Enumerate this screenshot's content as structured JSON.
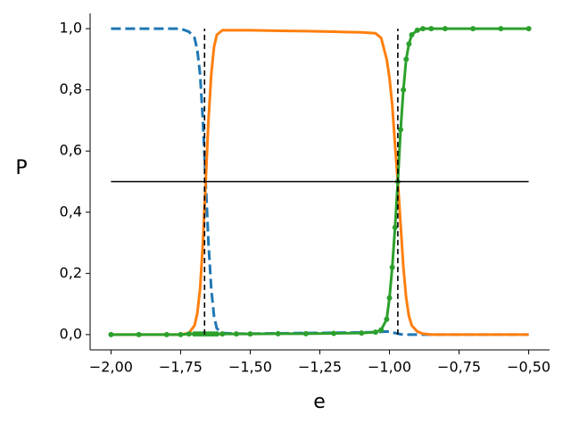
{
  "chart_data": {
    "type": "line",
    "x_label": "e",
    "y_label": "P",
    "xlim": [
      -2.075,
      -0.425
    ],
    "ylim": [
      -0.05,
      1.05
    ],
    "xticks": [
      {
        "value": -2.0,
        "label": "−2,00"
      },
      {
        "value": -1.75,
        "label": "−1,75"
      },
      {
        "value": -1.5,
        "label": "−1,50"
      },
      {
        "value": -1.25,
        "label": "−1,25"
      },
      {
        "value": -1.0,
        "label": "−1,00"
      },
      {
        "value": -0.75,
        "label": "−0,75"
      },
      {
        "value": -0.5,
        "label": "−0,50"
      }
    ],
    "yticks": [
      {
        "value": 0,
        "label": "0,0"
      },
      {
        "value": 0.2,
        "label": "0,2"
      },
      {
        "value": 0.4,
        "label": "0,4"
      },
      {
        "value": 0.6,
        "label": "0,6"
      },
      {
        "value": 0.8,
        "label": "0,8"
      },
      {
        "value": 1,
        "label": "1,0"
      }
    ],
    "grid": false,
    "x": [
      -2.0,
      -1.9,
      -1.8,
      -1.75,
      -1.72,
      -1.7,
      -1.69,
      -1.68,
      -1.67,
      -1.66,
      -1.65,
      -1.64,
      -1.63,
      -1.62,
      -1.6,
      -1.55,
      -1.5,
      -1.4,
      -1.3,
      -1.2,
      -1.1,
      -1.05,
      -1.03,
      -1.01,
      -1.0,
      -0.99,
      -0.98,
      -0.97,
      -0.96,
      -0.95,
      -0.94,
      -0.93,
      -0.92,
      -0.9,
      -0.88,
      -0.85,
      -0.8,
      -0.7,
      -0.6,
      -0.5
    ],
    "series": [
      {
        "color": "#1f77b4",
        "linestyle": "dashed",
        "marker": "none",
        "values": [
          1,
          1,
          1,
          1,
          0.99,
          0.97,
          0.93,
          0.85,
          0.7,
          0.5,
          0.3,
          0.15,
          0.06,
          0.02,
          0.005,
          0.003,
          0.003,
          0.004,
          0.005,
          0.006,
          0.007,
          0.008,
          0.009,
          0.01,
          0.01,
          0.008,
          0.005,
          0.003,
          0.001,
          0,
          0,
          0,
          0,
          0,
          0,
          0,
          0,
          0,
          0,
          0
        ]
      },
      {
        "color": "#ff7f0e",
        "linestyle": "solid",
        "marker": "none",
        "values": [
          0,
          0,
          0,
          0,
          0.005,
          0.03,
          0.07,
          0.15,
          0.3,
          0.5,
          0.7,
          0.85,
          0.94,
          0.98,
          0.995,
          0.995,
          0.995,
          0.993,
          0.992,
          0.99,
          0.988,
          0.985,
          0.97,
          0.9,
          0.84,
          0.75,
          0.62,
          0.5,
          0.36,
          0.22,
          0.12,
          0.06,
          0.03,
          0.01,
          0.003,
          0,
          0,
          0,
          0,
          0
        ]
      },
      {
        "color": "#2ca02c",
        "linestyle": "solid",
        "marker": "circle",
        "values": [
          0,
          0,
          0,
          0,
          0.002,
          0.002,
          0.002,
          0.002,
          0.002,
          0.002,
          0.002,
          0.002,
          0.002,
          0.002,
          0.002,
          0.002,
          0.002,
          0.003,
          0.003,
          0.004,
          0.005,
          0.008,
          0.015,
          0.05,
          0.12,
          0.22,
          0.35,
          0.5,
          0.67,
          0.8,
          0.9,
          0.95,
          0.98,
          0.995,
          1,
          1,
          1,
          1,
          1,
          1
        ]
      }
    ],
    "hline": {
      "y": 0.5,
      "xmin": -2.0,
      "xmax": -0.5,
      "color": "#000000"
    },
    "vlines": [
      {
        "x": -1.664,
        "ymin": 0,
        "ymax": 1,
        "color": "#000000"
      },
      {
        "x": -0.97,
        "ymin": 0,
        "ymax": 1,
        "color": "#000000"
      }
    ]
  }
}
